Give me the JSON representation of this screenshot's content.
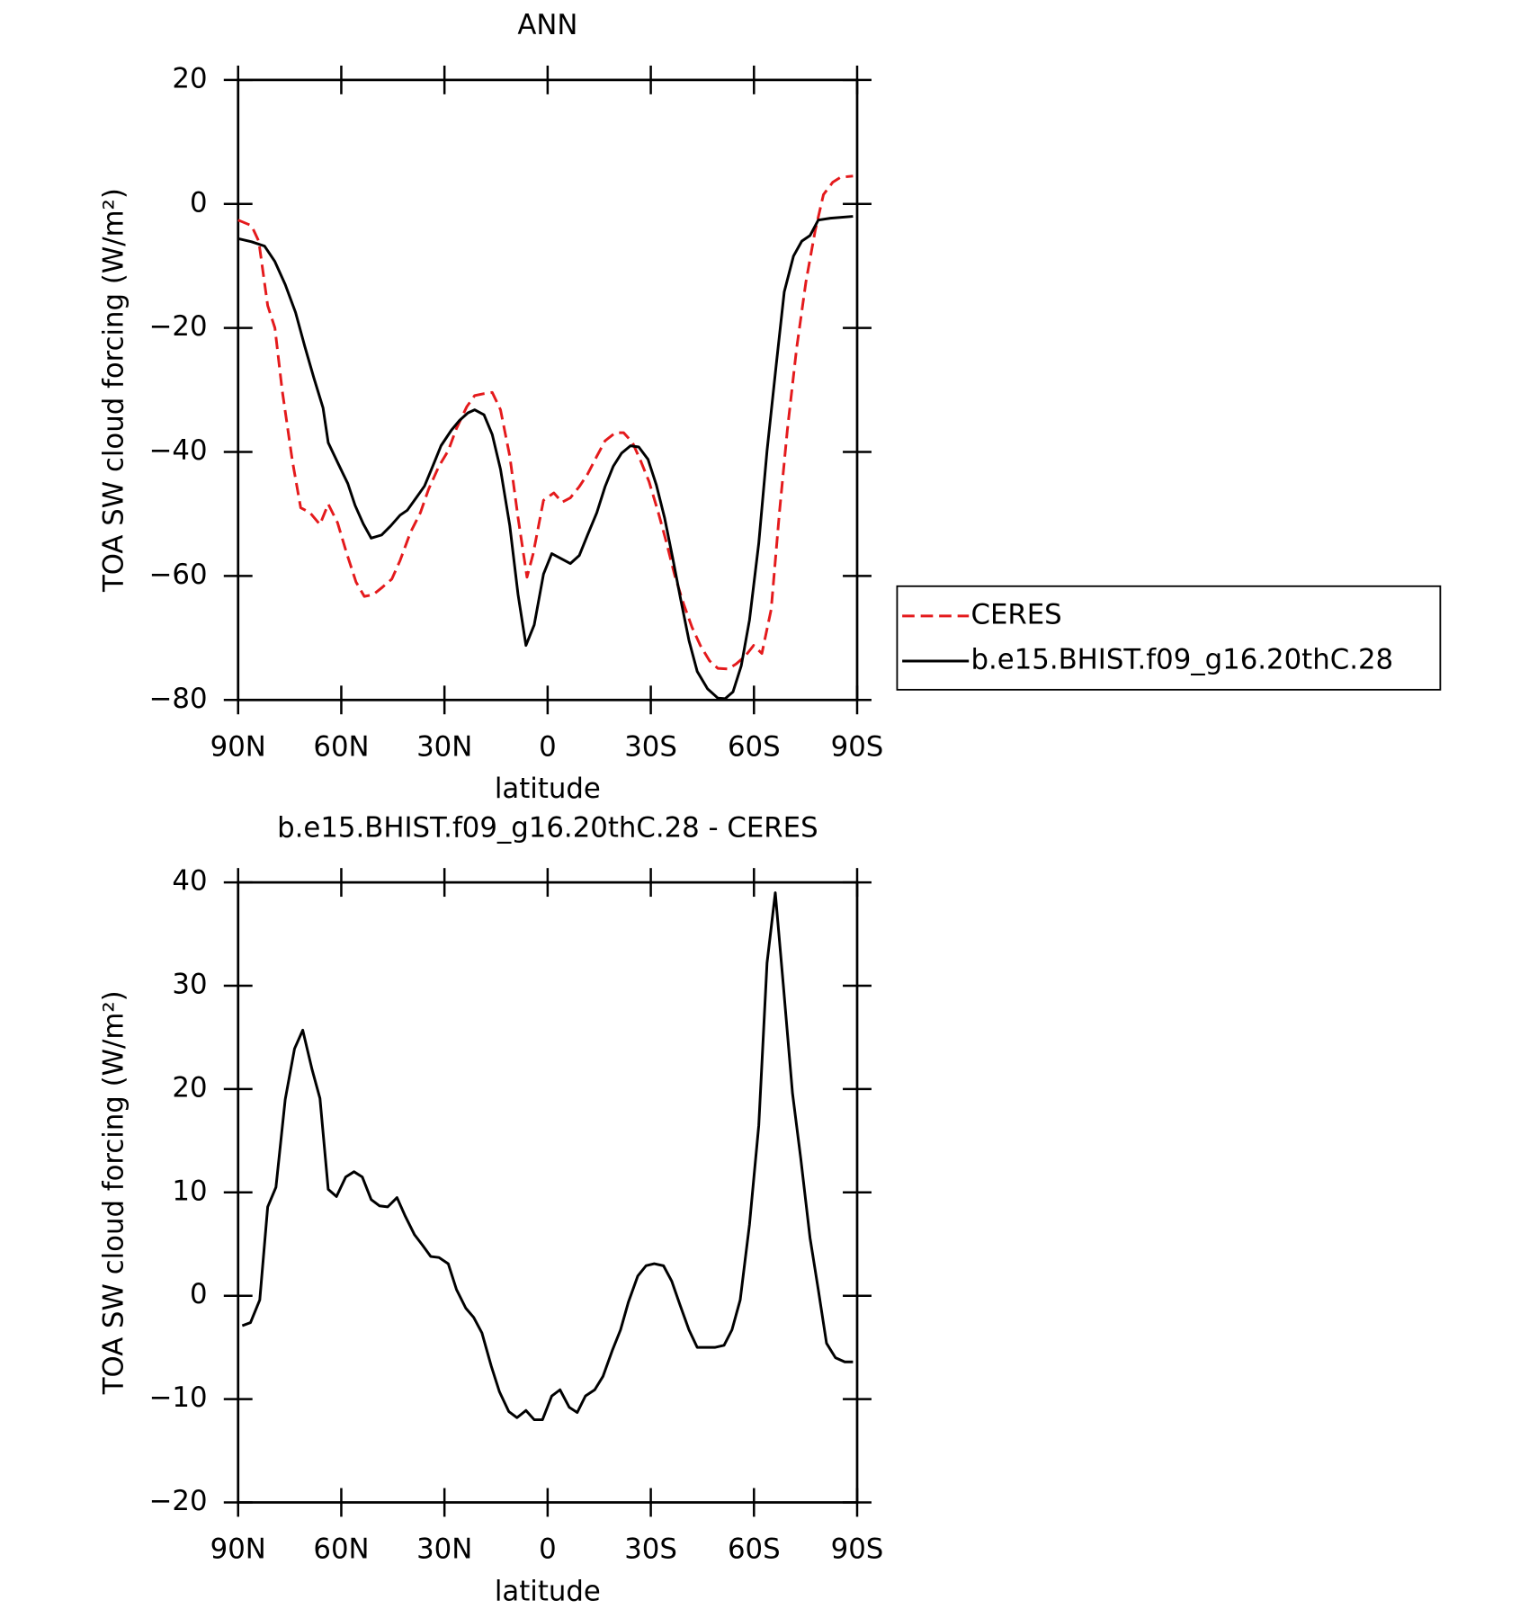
{
  "chart_data": [
    {
      "type": "line",
      "title": "ANN",
      "xlabel": "latitude",
      "ylabel": "TOA SW cloud forcing (W/m²)",
      "xlim": [
        90,
        -90
      ],
      "xticks": [
        {
          "value": 90,
          "label": "90N"
        },
        {
          "value": 60,
          "label": "60N"
        },
        {
          "value": 30,
          "label": "30N"
        },
        0,
        {
          "value": -30,
          "label": "30S"
        },
        {
          "value": -60,
          "label": "60S"
        },
        {
          "value": -90,
          "label": "90S"
        }
      ],
      "ylim": [
        -80,
        20
      ],
      "yticks": [
        -80,
        -60,
        -40,
        -20,
        0,
        20
      ],
      "legend": "outside right",
      "series": [
        {
          "name": "CERES",
          "color": "#e41a1c",
          "dash": true,
          "x": [
            90,
            86.1,
            84.0,
            81.4,
            79.3,
            77.2,
            74.2,
            71.8,
            69.1,
            66.2,
            63.8,
            61.1,
            58.4,
            55.7,
            53.3,
            50.7,
            48.0,
            45.3,
            42.9,
            39.9,
            37.0,
            34.6,
            31.6,
            28.9,
            26.5,
            23.5,
            21.2,
            18.5,
            16.1,
            13.7,
            11.0,
            8.6,
            6.0,
            4.2,
            1.2,
            -1.8,
            -4.2,
            -6.6,
            -9.2,
            -11.6,
            -14.3,
            -16.7,
            -19.7,
            -22.1,
            -24.7,
            -27.1,
            -29.5,
            -32.2,
            -34.6,
            -37.0,
            -39.6,
            -42.0,
            -44.4,
            -47.1,
            -49.5,
            -52.5,
            -54.8,
            -57.5,
            -59.9,
            -62.3,
            -65.0,
            -67.4,
            -69.7,
            -72.4,
            -75.1,
            -77.8,
            -80.2,
            -82.9,
            -85.2,
            -88.8
          ],
          "values": [
            -2.6,
            -3.5,
            -6,
            -16.4,
            -20,
            -30,
            -41.5,
            -49,
            -49.8,
            -51.7,
            -48.4,
            -51.4,
            -56.4,
            -61,
            -63.3,
            -63,
            -61.8,
            -60.5,
            -57.5,
            -53,
            -49.8,
            -46,
            -42.3,
            -39.8,
            -36.2,
            -32.7,
            -30.9,
            -30.6,
            -30.4,
            -33.2,
            -40.7,
            -50.6,
            -60.2,
            -56.4,
            -47.8,
            -46.6,
            -48.1,
            -47.4,
            -45.6,
            -43.6,
            -40.7,
            -38.2,
            -36.9,
            -36.9,
            -38.5,
            -41.5,
            -44.8,
            -49.8,
            -54.7,
            -60,
            -64.6,
            -68.3,
            -71.2,
            -73.7,
            -74.9,
            -75,
            -74.2,
            -72.9,
            -71.2,
            -72.5,
            -65.4,
            -49.8,
            -36.5,
            -23.3,
            -12.6,
            -4.3,
            1.5,
            3.5,
            4.3,
            4.5
          ]
        },
        {
          "name": "b.e15.BHIST.f09_g16.20thC.28",
          "color": "#000000",
          "x": [
            90,
            86.1,
            82.3,
            79.3,
            76.3,
            73.3,
            70.6,
            68.0,
            65.3,
            63.8,
            60.8,
            58.1,
            56.0,
            53.6,
            51.3,
            48.3,
            45.6,
            42.9,
            40.8,
            38.1,
            35.8,
            33.4,
            31.0,
            28.0,
            25.6,
            23.2,
            21.2,
            18.5,
            16.1,
            13.7,
            11.0,
            8.6,
            6.3,
            3.9,
            1.2,
            -1.2,
            -3.9,
            -6.6,
            -9.2,
            -11.6,
            -14.3,
            -16.7,
            -19.1,
            -21.5,
            -24.1,
            -26.5,
            -29.2,
            -31.6,
            -34.0,
            -36.4,
            -38.7,
            -41.1,
            -43.5,
            -46.5,
            -49.5,
            -51.6,
            -53.9,
            -56.3,
            -58.7,
            -61.4,
            -63.8,
            -66.5,
            -68.8,
            -71.5,
            -73.9,
            -76.3,
            -78.7,
            -82.2,
            -88.8
          ],
          "values": [
            -5.6,
            -6.1,
            -6.8,
            -9.3,
            -13,
            -17.5,
            -23,
            -28,
            -32.9,
            -38.5,
            -42,
            -45.1,
            -48.6,
            -51.6,
            -53.9,
            -53.4,
            -51.9,
            -50.2,
            -49.4,
            -47.3,
            -45.5,
            -42.3,
            -39,
            -36.5,
            -34.9,
            -33.7,
            -33.2,
            -34,
            -37.2,
            -42.8,
            -51.9,
            -63,
            -71.2,
            -67.9,
            -59.7,
            -56.4,
            -57.2,
            -58,
            -56.7,
            -53.4,
            -49.8,
            -45.6,
            -42.3,
            -40.2,
            -39,
            -39.2,
            -41.2,
            -45.3,
            -50.6,
            -57.2,
            -63.8,
            -70.4,
            -75.4,
            -78.2,
            -79.7,
            -79.8,
            -78.7,
            -74.5,
            -67.1,
            -54.7,
            -39.8,
            -25.8,
            -14.2,
            -8.4,
            -6,
            -5.1,
            -2.6,
            -2.3,
            -2
          ]
        }
      ]
    },
    {
      "type": "line",
      "title": "b.e15.BHIST.f09_g16.20thC.28 - CERES",
      "xlabel": "latitude",
      "ylabel": "TOA SW cloud forcing (W/m²)",
      "xlim": [
        90,
        -90
      ],
      "xticks": [
        {
          "value": 90,
          "label": "90N"
        },
        {
          "value": 60,
          "label": "60N"
        },
        {
          "value": 30,
          "label": "30N"
        },
        0,
        {
          "value": -30,
          "label": "30S"
        },
        {
          "value": -60,
          "label": "60S"
        },
        {
          "value": -90,
          "label": "90S"
        }
      ],
      "ylim": [
        -20,
        40
      ],
      "yticks": [
        -20,
        -10,
        0,
        10,
        20,
        30,
        40
      ],
      "series": [
        {
          "color": "#000000",
          "x": [
            88.8,
            86.4,
            83.7,
            81.4,
            79.0,
            76.3,
            73.6,
            71.2,
            68.5,
            66.2,
            63.8,
            61.4,
            58.7,
            56.3,
            53.9,
            51.3,
            48.9,
            46.5,
            43.8,
            41.4,
            38.7,
            36.4,
            34.0,
            31.6,
            28.9,
            26.5,
            23.8,
            21.5,
            19.1,
            16.4,
            14.0,
            11.3,
            8.9,
            6.3,
            3.9,
            1.5,
            -1.2,
            -3.6,
            -6.3,
            -8.6,
            -11.0,
            -13.7,
            -16.1,
            -18.8,
            -21.2,
            -23.5,
            -26.2,
            -28.6,
            -31.0,
            -33.7,
            -36.1,
            -38.4,
            -41.1,
            -43.5,
            -46.2,
            -48.6,
            -51.3,
            -53.6,
            -56.0,
            -58.7,
            -61.4,
            -63.8,
            -66.2,
            -68.5,
            -71.2,
            -73.6,
            -76.3,
            -78.7,
            -81.1,
            -83.7,
            -86.4,
            -88.8
          ],
          "values": [
            -2.9,
            -2.6,
            -0.4,
            8.6,
            10.5,
            19,
            23.9,
            25.7,
            21.9,
            19.1,
            10.3,
            9.6,
            11.5,
            12,
            11.5,
            9.3,
            8.7,
            8.6,
            9.5,
            7.7,
            5.9,
            4.9,
            3.8,
            3.7,
            3.1,
            0.6,
            -1.2,
            -2.1,
            -3.6,
            -6.8,
            -9.3,
            -11.2,
            -11.8,
            -11.1,
            -12,
            -12,
            -9.7,
            -9.1,
            -10.8,
            -11.3,
            -9.7,
            -9.1,
            -7.8,
            -5.3,
            -3.3,
            -0.6,
            1.9,
            2.9,
            3.1,
            2.9,
            1.4,
            -0.8,
            -3.3,
            -5,
            -5,
            -5,
            -4.8,
            -3.3,
            -0.4,
            6.9,
            16.5,
            32.2,
            39,
            30.2,
            19.6,
            13.3,
            5.6,
            0.6,
            -4.6,
            -6,
            -6.4,
            -6.4
          ]
        }
      ]
    }
  ]
}
